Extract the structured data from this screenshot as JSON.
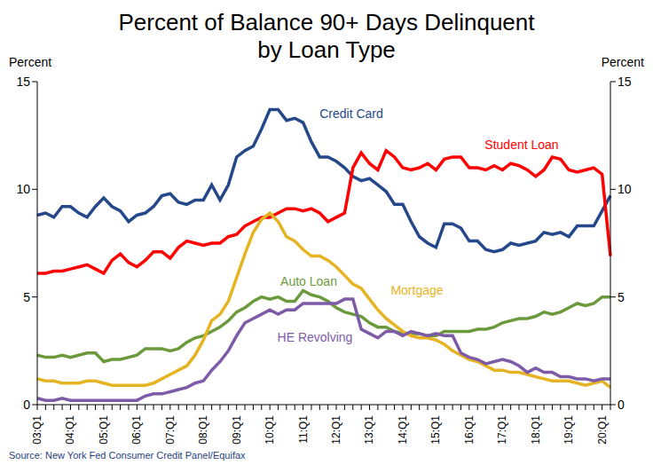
{
  "chart_data": {
    "type": "line",
    "title": [
      "Percent of Balance 90+ Days Delinquent",
      "by Loan Type"
    ],
    "y_label": "Percent",
    "y2_label": "Percent",
    "source": "Source: New York Fed Consumer Credit Panel/Equifax",
    "categories": [
      "03:Q1",
      null,
      null,
      null,
      "04:Q1",
      null,
      null,
      null,
      "05:Q1",
      null,
      null,
      null,
      "06:Q1",
      null,
      null,
      null,
      "07:Q1",
      null,
      null,
      null,
      "08:Q1",
      null,
      null,
      null,
      "09:Q1",
      null,
      null,
      null,
      "10:Q1",
      null,
      null,
      null,
      "11:Q1",
      null,
      null,
      null,
      "12:Q1",
      null,
      null,
      null,
      "13:Q1",
      null,
      null,
      null,
      "14:Q1",
      null,
      null,
      null,
      "15:Q1",
      null,
      null,
      null,
      "16:Q1",
      null,
      null,
      null,
      "17:Q1",
      null,
      null,
      null,
      "18:Q1",
      null,
      null,
      null,
      "19:Q1",
      null,
      null,
      null,
      "20:Q1",
      null
    ],
    "ylim": [
      0,
      15
    ],
    "yticks": [
      0,
      5,
      10,
      15
    ],
    "y2lim": [
      0,
      15
    ],
    "y2ticks": [
      0,
      5,
      10,
      15
    ],
    "grid": false,
    "series": [
      {
        "name": "Credit Card",
        "color": "#24488a",
        "values": [
          8.8,
          8.9,
          8.7,
          9.2,
          9.2,
          8.9,
          8.7,
          9.2,
          9.6,
          9.2,
          9.0,
          8.5,
          8.8,
          8.9,
          9.2,
          9.7,
          9.8,
          9.4,
          9.3,
          9.5,
          9.5,
          10.2,
          9.5,
          10.2,
          11.5,
          11.8,
          12.0,
          12.8,
          13.7,
          13.7,
          13.2,
          13.3,
          13.1,
          12.2,
          11.5,
          11.5,
          11.3,
          11.0,
          10.6,
          10.4,
          10.5,
          10.2,
          9.9,
          9.3,
          9.3,
          8.5,
          7.8,
          7.5,
          7.3,
          8.4,
          8.4,
          8.2,
          7.6,
          7.6,
          7.2,
          7.1,
          7.2,
          7.5,
          7.4,
          7.5,
          7.6,
          8.0,
          7.9,
          8.0,
          7.8,
          8.3,
          8.3,
          8.3,
          9.0,
          9.7
        ]
      },
      {
        "name": "Student Loan",
        "color": "#ff0000",
        "values": [
          6.1,
          6.1,
          6.2,
          6.2,
          6.3,
          6.4,
          6.5,
          6.3,
          6.1,
          6.7,
          7.0,
          6.6,
          6.4,
          6.7,
          7.1,
          7.1,
          6.8,
          7.3,
          7.6,
          7.5,
          7.4,
          7.5,
          7.5,
          7.8,
          7.9,
          8.3,
          8.5,
          8.7,
          8.7,
          8.9,
          9.1,
          9.1,
          9.0,
          9.1,
          8.9,
          8.5,
          8.7,
          8.9,
          11.0,
          11.7,
          11.2,
          10.9,
          11.8,
          11.5,
          11.0,
          10.9,
          11.0,
          11.2,
          10.9,
          11.4,
          11.5,
          11.5,
          11.0,
          11.0,
          10.9,
          11.1,
          10.9,
          11.2,
          11.1,
          10.9,
          10.6,
          10.9,
          11.5,
          11.4,
          10.9,
          10.8,
          10.9,
          11.0,
          10.7,
          6.9
        ]
      },
      {
        "name": "Auto Loan",
        "color": "#6b9a3c",
        "values": [
          2.3,
          2.2,
          2.2,
          2.3,
          2.2,
          2.3,
          2.4,
          2.4,
          2.0,
          2.1,
          2.1,
          2.2,
          2.3,
          2.6,
          2.6,
          2.6,
          2.5,
          2.6,
          2.9,
          3.1,
          3.2,
          3.4,
          3.6,
          3.9,
          4.3,
          4.5,
          4.8,
          5.0,
          4.9,
          5.0,
          4.8,
          4.8,
          5.3,
          5.1,
          5.0,
          4.8,
          4.5,
          4.3,
          4.2,
          4.1,
          3.8,
          3.6,
          3.6,
          3.4,
          3.3,
          3.3,
          3.3,
          3.2,
          3.2,
          3.4,
          3.4,
          3.4,
          3.4,
          3.5,
          3.5,
          3.6,
          3.8,
          3.9,
          4.0,
          4.0,
          4.1,
          4.3,
          4.2,
          4.3,
          4.5,
          4.7,
          4.6,
          4.7,
          5.0,
          5.0
        ]
      },
      {
        "name": "Mortgage",
        "color": "#e6b422",
        "values": [
          1.2,
          1.1,
          1.1,
          1.0,
          1.0,
          1.0,
          1.1,
          1.1,
          1.0,
          0.9,
          0.9,
          0.9,
          0.9,
          0.9,
          1.0,
          1.2,
          1.4,
          1.6,
          1.8,
          2.3,
          3.0,
          3.9,
          4.2,
          4.8,
          5.9,
          7.0,
          8.0,
          8.6,
          8.9,
          8.5,
          7.8,
          7.6,
          7.2,
          6.9,
          6.9,
          6.7,
          6.4,
          6.0,
          5.6,
          5.4,
          4.9,
          4.4,
          4.0,
          3.7,
          3.4,
          3.2,
          3.1,
          3.1,
          3.0,
          2.8,
          2.5,
          2.3,
          2.1,
          2.0,
          1.8,
          1.6,
          1.6,
          1.5,
          1.5,
          1.4,
          1.3,
          1.2,
          1.1,
          1.1,
          1.1,
          1.0,
          0.9,
          1.0,
          1.1,
          0.8
        ]
      },
      {
        "name": "HE Revolving",
        "color": "#7e5ba8",
        "values": [
          0.3,
          0.2,
          0.2,
          0.3,
          0.2,
          0.2,
          0.2,
          0.2,
          0.2,
          0.2,
          0.2,
          0.2,
          0.2,
          0.4,
          0.5,
          0.5,
          0.6,
          0.7,
          0.8,
          1.0,
          1.1,
          1.6,
          2.0,
          2.5,
          3.2,
          3.8,
          4.0,
          4.2,
          4.4,
          4.2,
          4.4,
          4.4,
          4.7,
          4.7,
          4.7,
          4.7,
          4.7,
          4.9,
          4.9,
          3.5,
          3.3,
          3.1,
          3.4,
          3.4,
          3.2,
          3.4,
          3.3,
          3.2,
          3.3,
          3.2,
          3.2,
          2.4,
          2.2,
          2.1,
          1.9,
          2.0,
          2.1,
          2.0,
          1.8,
          1.5,
          1.7,
          1.5,
          1.5,
          1.3,
          1.3,
          1.2,
          1.2,
          1.1,
          1.2,
          1.2
        ]
      }
    ]
  }
}
